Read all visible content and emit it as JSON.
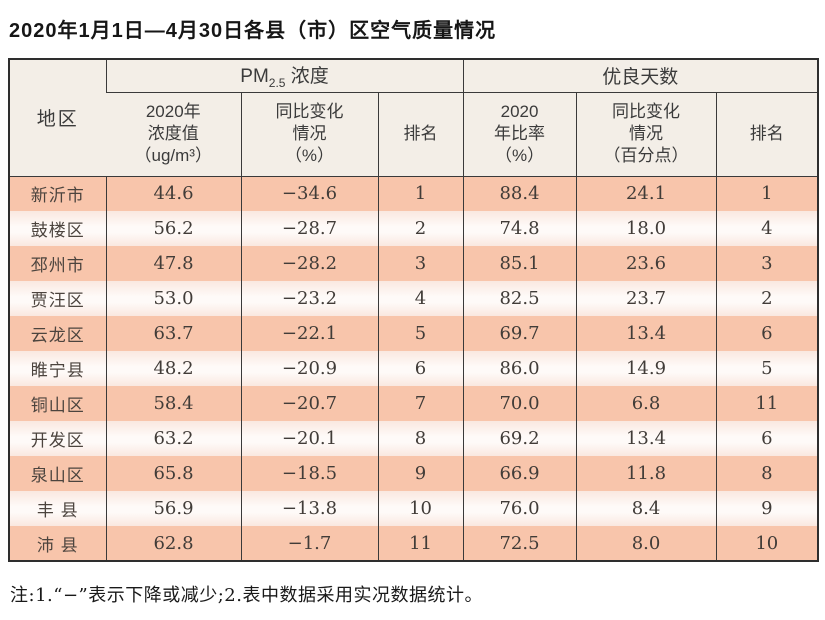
{
  "page": {
    "title": "2020年1月1日—4月30日各县（市）区空气质量情况",
    "footnote": "注:1.“−”表示下降或减少;2.表中数据采用实况数据统计。"
  },
  "colors": {
    "row_salmon": "#f8c5ab",
    "row_light": "#fefaf8",
    "header_bg": "#f3eee7",
    "border": "#3a3a3a",
    "title_text": "#161616"
  },
  "table": {
    "header": {
      "region": "地区",
      "pm_group": {
        "prefix": "PM",
        "sub": "2.5",
        "suffix": " 浓度"
      },
      "good_group": "优良天数",
      "pm_value": "2020年\n浓度值\n（ug/m³）",
      "pm_change": "同比变化\n情况\n（%）",
      "pm_rank": "排名",
      "good_ratio": "2020\n年比率\n（%）",
      "good_change": "同比变化\n情况\n（百分点）",
      "good_rank": "排名"
    },
    "row_keys": [
      "region",
      "pm_value",
      "pm_change",
      "pm_rank",
      "good_ratio",
      "good_change",
      "good_rank"
    ],
    "rows": [
      {
        "region": "新沂市",
        "pm_value": "44.6",
        "pm_change": "−34.6",
        "pm_rank": "1",
        "good_ratio": "88.4",
        "good_change": "24.1",
        "good_rank": "1"
      },
      {
        "region": "鼓楼区",
        "pm_value": "56.2",
        "pm_change": "−28.7",
        "pm_rank": "2",
        "good_ratio": "74.8",
        "good_change": "18.0",
        "good_rank": "4"
      },
      {
        "region": "邳州市",
        "pm_value": "47.8",
        "pm_change": "−28.2",
        "pm_rank": "3",
        "good_ratio": "85.1",
        "good_change": "23.6",
        "good_rank": "3"
      },
      {
        "region": "贾汪区",
        "pm_value": "53.0",
        "pm_change": "−23.2",
        "pm_rank": "4",
        "good_ratio": "82.5",
        "good_change": "23.7",
        "good_rank": "2"
      },
      {
        "region": "云龙区",
        "pm_value": "63.7",
        "pm_change": "−22.1",
        "pm_rank": "5",
        "good_ratio": "69.7",
        "good_change": "13.4",
        "good_rank": "6"
      },
      {
        "region": "睢宁县",
        "pm_value": "48.2",
        "pm_change": "−20.9",
        "pm_rank": "6",
        "good_ratio": "86.0",
        "good_change": "14.9",
        "good_rank": "5"
      },
      {
        "region": "铜山区",
        "pm_value": "58.4",
        "pm_change": "−20.7",
        "pm_rank": "7",
        "good_ratio": "70.0",
        "good_change": "6.8",
        "good_rank": "11"
      },
      {
        "region": "开发区",
        "pm_value": "63.2",
        "pm_change": "−20.1",
        "pm_rank": "8",
        "good_ratio": "69.2",
        "good_change": "13.4",
        "good_rank": "6"
      },
      {
        "region": "泉山区",
        "pm_value": "65.8",
        "pm_change": "−18.5",
        "pm_rank": "9",
        "good_ratio": "66.9",
        "good_change": "11.8",
        "good_rank": "8"
      },
      {
        "region": "丰 县",
        "pm_value": "56.9",
        "pm_change": "−13.8",
        "pm_rank": "10",
        "good_ratio": "76.0",
        "good_change": "8.4",
        "good_rank": "9"
      },
      {
        "region": "沛 县",
        "pm_value": "62.8",
        "pm_change": "−1.7",
        "pm_rank": "11",
        "good_ratio": "72.5",
        "good_change": "8.0",
        "good_rank": "10"
      }
    ]
  }
}
